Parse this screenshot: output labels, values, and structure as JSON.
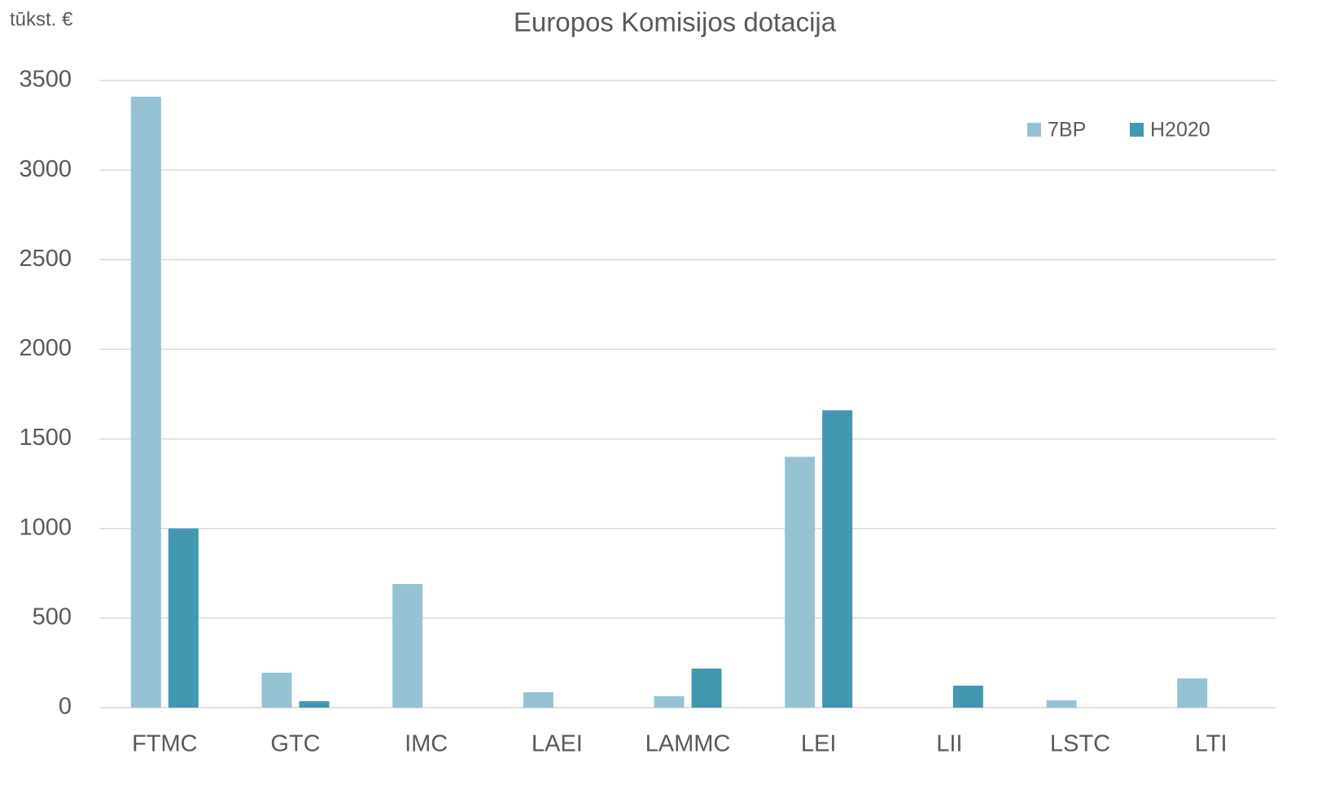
{
  "chart_data": {
    "type": "bar",
    "title": "Europos Komisijos dotacija",
    "y_label": "tūkst. €",
    "categories": [
      "FTMC",
      "GTC",
      "IMC",
      "LAEI",
      "LAMMC",
      "LEI",
      "LII",
      "LSTC",
      "LTI"
    ],
    "series": [
      {
        "name": "7BP",
        "color": "#95c3d4",
        "values": [
          3410,
          195,
          690,
          86,
          64,
          1400,
          null,
          41,
          163
        ]
      },
      {
        "name": "H2020",
        "color": "#4198b0",
        "values": [
          1000,
          36,
          null,
          null,
          218,
          1660,
          123,
          null,
          null
        ]
      }
    ],
    "ylim": [
      0,
      3500
    ],
    "yticks": [
      0,
      500,
      1000,
      1500,
      2000,
      2500,
      3000,
      3500
    ],
    "grid": true,
    "legend": "top-right"
  }
}
